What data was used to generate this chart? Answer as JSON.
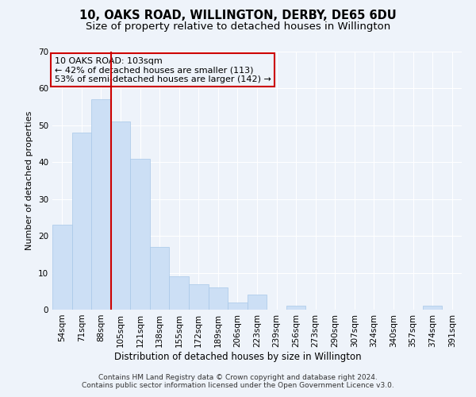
{
  "title": "10, OAKS ROAD, WILLINGTON, DERBY, DE65 6DU",
  "subtitle": "Size of property relative to detached houses in Willington",
  "xlabel": "Distribution of detached houses by size in Willington",
  "ylabel": "Number of detached properties",
  "categories": [
    "54sqm",
    "71sqm",
    "88sqm",
    "105sqm",
    "121sqm",
    "138sqm",
    "155sqm",
    "172sqm",
    "189sqm",
    "206sqm",
    "223sqm",
    "239sqm",
    "256sqm",
    "273sqm",
    "290sqm",
    "307sqm",
    "324sqm",
    "340sqm",
    "357sqm",
    "374sqm",
    "391sqm"
  ],
  "values": [
    23,
    48,
    57,
    51,
    41,
    17,
    9,
    7,
    6,
    2,
    4,
    0,
    1,
    0,
    0,
    0,
    0,
    0,
    0,
    1,
    0
  ],
  "bar_color": "#ccdff5",
  "bar_edgecolor": "#a8c8e8",
  "vline_x": 2.5,
  "vline_color": "#cc0000",
  "annotation_text": "10 OAKS ROAD: 103sqm\n← 42% of detached houses are smaller (113)\n53% of semi-detached houses are larger (142) →",
  "annotation_box_edgecolor": "#cc0000",
  "annotation_box_facecolor": "#eef3fa",
  "ylim": [
    0,
    70
  ],
  "yticks": [
    0,
    10,
    20,
    30,
    40,
    50,
    60,
    70
  ],
  "background_color": "#eef3fa",
  "grid_color": "#ffffff",
  "footer_text": "Contains HM Land Registry data © Crown copyright and database right 2024.\nContains public sector information licensed under the Open Government Licence v3.0.",
  "title_fontsize": 10.5,
  "subtitle_fontsize": 9.5,
  "xlabel_fontsize": 8.5,
  "ylabel_fontsize": 8,
  "tick_fontsize": 7.5,
  "annotation_fontsize": 8,
  "footer_fontsize": 6.5
}
